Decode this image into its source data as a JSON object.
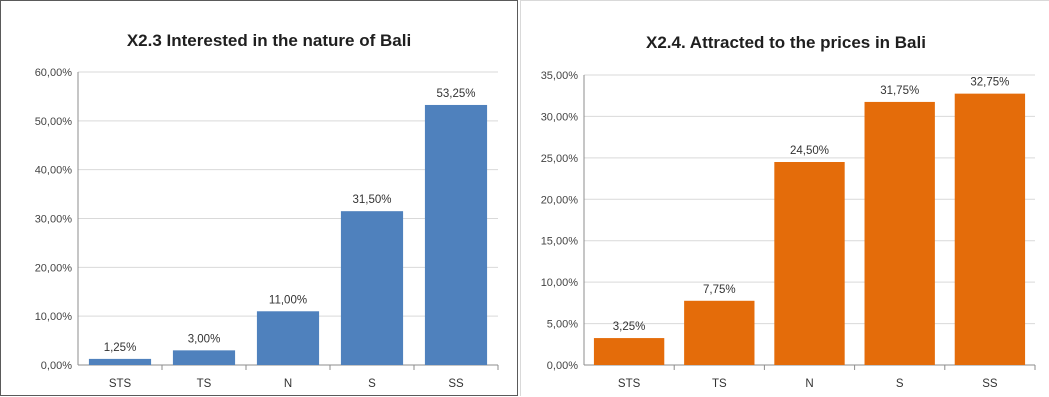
{
  "chart_data": [
    {
      "type": "bar",
      "title": "X2.3 Interested in the nature of Bali",
      "categories": [
        "STS",
        "TS",
        "N",
        "S",
        "SS"
      ],
      "values": [
        1.25,
        3.0,
        11.0,
        31.5,
        53.25
      ],
      "value_labels": [
        "1,25%",
        "3,00%",
        "11,00%",
        "31,50%",
        "53,25%"
      ],
      "y_ticks": [
        "0,00%",
        "10,00%",
        "20,00%",
        "30,00%",
        "40,00%",
        "50,00%",
        "60,00%"
      ],
      "ylim": [
        0,
        60
      ],
      "color": "#4f81bd",
      "grid": true,
      "legend": "none"
    },
    {
      "type": "bar",
      "title": "X2.4. Attracted to the prices in Bali",
      "categories": [
        "STS",
        "TS",
        "N",
        "S",
        "SS"
      ],
      "values": [
        3.25,
        7.75,
        24.5,
        31.75,
        32.75
      ],
      "value_labels": [
        "3,25%",
        "7,75%",
        "24,50%",
        "31,75%",
        "32,75%"
      ],
      "y_ticks": [
        "0,00%",
        "5,00%",
        "10,00%",
        "15,00%",
        "20,00%",
        "25,00%",
        "30,00%",
        "35,00%"
      ],
      "ylim": [
        0,
        35
      ],
      "color": "#e46c0a",
      "grid": true,
      "legend": "none"
    }
  ]
}
